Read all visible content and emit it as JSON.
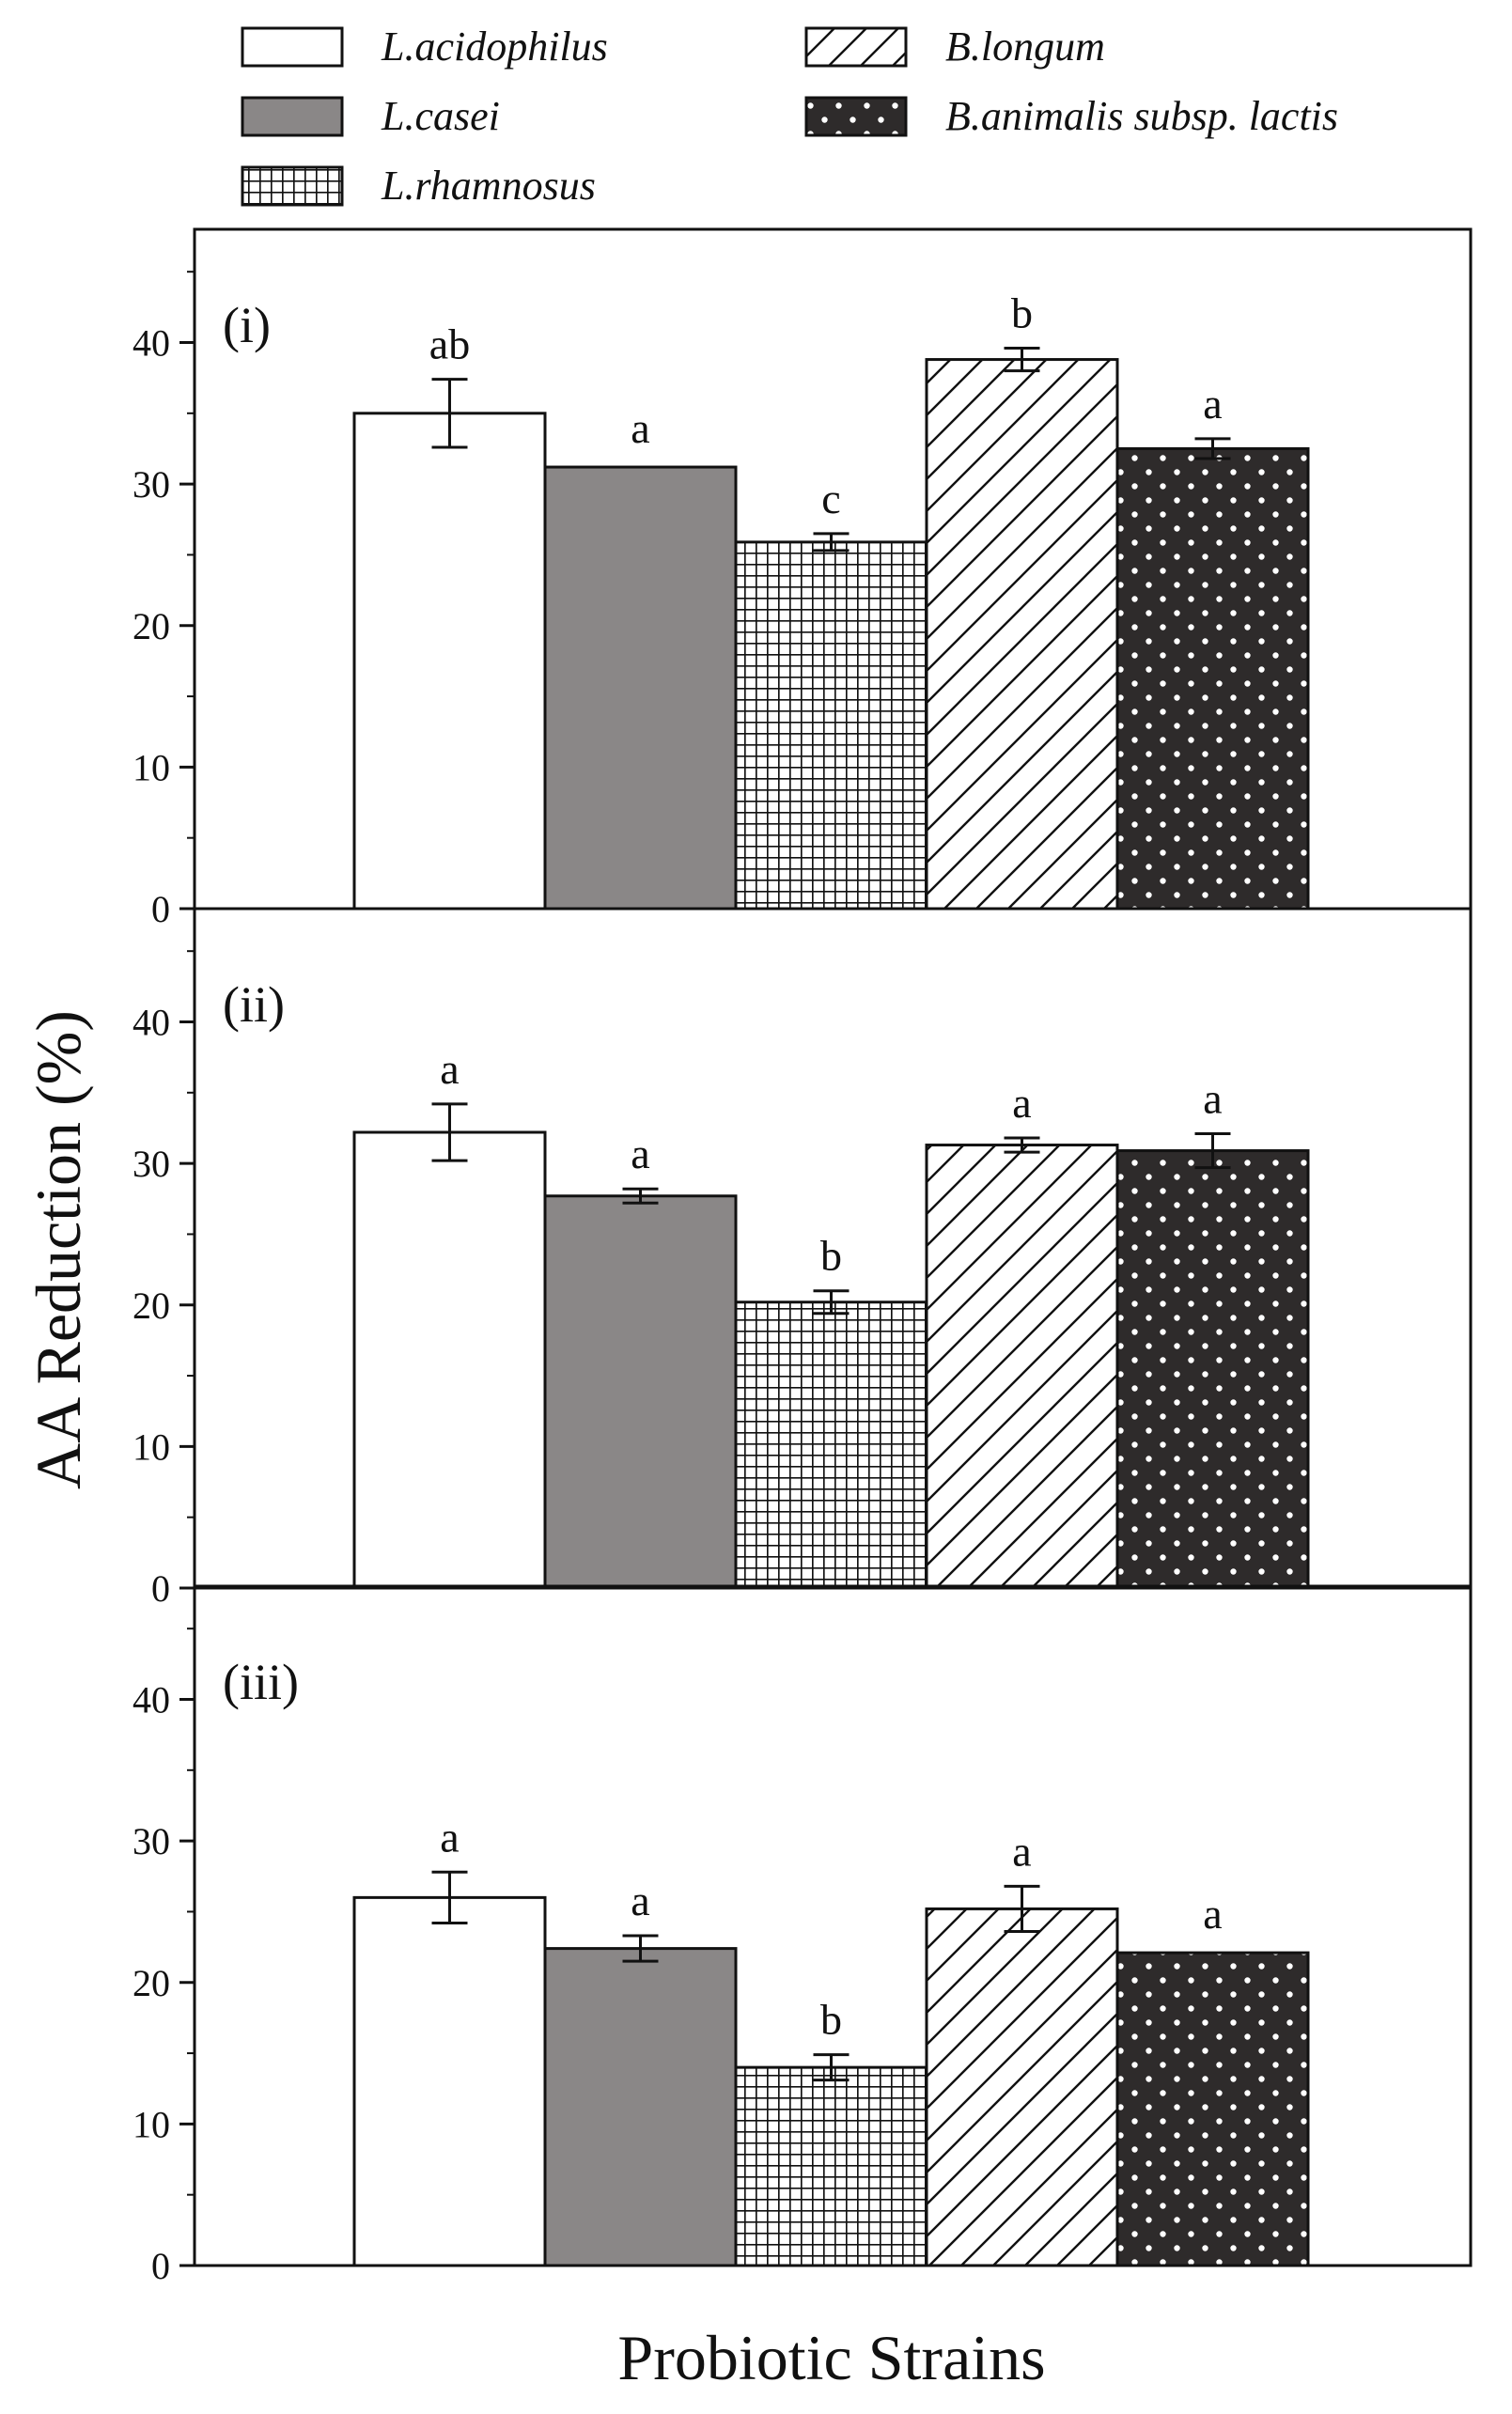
{
  "chart_data": {
    "type": "bar",
    "ylabel": "AA Reduction (%)",
    "xlabel": "Probiotic Strains",
    "ylim": [
      0,
      48
    ],
    "yticks": [
      "0",
      "10",
      "20",
      "30",
      "40"
    ],
    "legend_position": "top",
    "series": [
      {
        "name": "L.acidophilus",
        "color": "#ffffff",
        "pattern": "none"
      },
      {
        "name": "L.casei",
        "color": "#8a8787",
        "pattern": "none"
      },
      {
        "name": "L.rhamnosus",
        "color": "#ffffff",
        "pattern": "grid"
      },
      {
        "name": "B.longum",
        "color": "#ffffff",
        "pattern": "diagonal"
      },
      {
        "name": "B.animalis subsp. lactis",
        "color": "#2e2b2b",
        "pattern": "dots"
      }
    ],
    "panels": [
      {
        "label": "(i)",
        "values": [
          35.0,
          31.2,
          25.9,
          38.8,
          32.5
        ],
        "errors": [
          2.4,
          0,
          0.6,
          0.8,
          0.7
        ],
        "sig": [
          "ab",
          "a",
          "c",
          "b",
          "a"
        ]
      },
      {
        "label": "(ii)",
        "values": [
          32.2,
          27.7,
          20.2,
          31.3,
          30.9
        ],
        "errors": [
          2.0,
          0.5,
          0.8,
          0.5,
          1.2
        ],
        "sig": [
          "a",
          "a",
          "b",
          "a",
          "a"
        ]
      },
      {
        "label": "(iii)",
        "values": [
          26.0,
          22.4,
          14.0,
          25.2,
          22.1
        ],
        "errors": [
          1.8,
          0.9,
          0.9,
          1.6,
          0
        ],
        "sig": [
          "a",
          "a",
          "b",
          "a",
          "a"
        ]
      }
    ]
  }
}
